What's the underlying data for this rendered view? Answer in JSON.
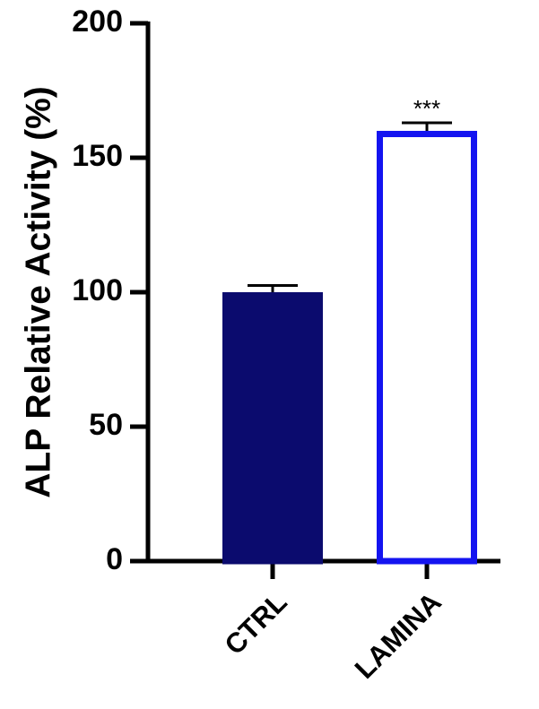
{
  "chart_data": {
    "type": "bar",
    "y_label": "ALP Relative Activity (%)",
    "categories": [
      "CTRL",
      "LAMINA"
    ],
    "values": [
      100,
      160
    ],
    "errors": [
      2.5,
      3
    ],
    "bar_styles": [
      {
        "fill": "#0b0b6e",
        "stroke": "#0b0b6e"
      },
      {
        "fill": "#ffffff",
        "stroke": "#1414f0"
      }
    ],
    "annotations": [
      {
        "text": "***",
        "category": "LAMINA"
      }
    ],
    "ylim": [
      0,
      200
    ],
    "yticks": [
      0,
      50,
      100,
      150,
      200
    ],
    "grid": false
  }
}
